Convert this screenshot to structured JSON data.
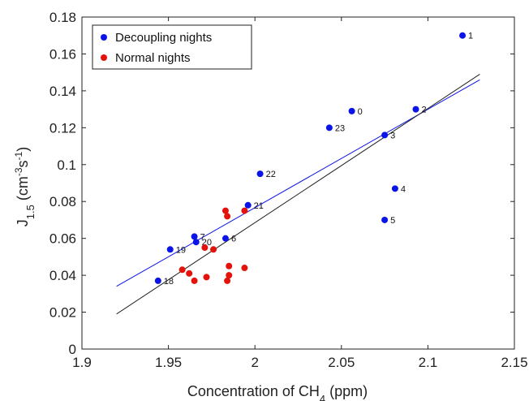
{
  "chart_data": {
    "type": "scatter",
    "xlabel": "Concentration of CH",
    "xlabel_sub": "4",
    "xlabel_suffix": " (ppm)",
    "ylabel": "J",
    "ylabel_sub": "1.5",
    "ylabel_unit_pre": " (cm",
    "ylabel_unit_sup1": "-3",
    "ylabel_unit_mid": "s",
    "ylabel_unit_sup2": "-1",
    "ylabel_unit_post": ")",
    "xlim": [
      1.9,
      2.15
    ],
    "ylim": [
      0,
      0.18
    ],
    "xticks": [
      1.9,
      1.95,
      2.0,
      2.05,
      2.1,
      2.15
    ],
    "xtick_labels": [
      "1.9",
      "1.95",
      "2",
      "2.05",
      "2.1",
      "2.15"
    ],
    "yticks": [
      0,
      0.02,
      0.04,
      0.06,
      0.08,
      0.1,
      0.12,
      0.14,
      0.16,
      0.18
    ],
    "ytick_labels": [
      "0",
      "0.02",
      "0.04",
      "0.06",
      "0.08",
      "0.1",
      "0.12",
      "0.14",
      "0.16",
      "0.18"
    ],
    "legend_position": "top-left",
    "series": [
      {
        "name": "Decoupling nights",
        "color": "#0a14e6",
        "points": [
          {
            "x": 2.12,
            "y": 0.17,
            "label": "1"
          },
          {
            "x": 2.093,
            "y": 0.13,
            "label": "2"
          },
          {
            "x": 2.056,
            "y": 0.129,
            "label": "0"
          },
          {
            "x": 2.043,
            "y": 0.12,
            "label": "23"
          },
          {
            "x": 2.075,
            "y": 0.116,
            "label": "3"
          },
          {
            "x": 2.003,
            "y": 0.095,
            "label": "22"
          },
          {
            "x": 2.081,
            "y": 0.087,
            "label": "4"
          },
          {
            "x": 1.996,
            "y": 0.078,
            "label": "21"
          },
          {
            "x": 2.075,
            "y": 0.07,
            "label": "5"
          },
          {
            "x": 1.965,
            "y": 0.061,
            "label": "7"
          },
          {
            "x": 1.983,
            "y": 0.06,
            "label": "6"
          },
          {
            "x": 1.966,
            "y": 0.058,
            "label": "20"
          },
          {
            "x": 1.951,
            "y": 0.054,
            "label": "19"
          },
          {
            "x": 1.944,
            "y": 0.037,
            "label": "18"
          }
        ]
      },
      {
        "name": "Normal nights",
        "color": "#e3120b",
        "points": [
          {
            "x": 1.983,
            "y": 0.075
          },
          {
            "x": 1.994,
            "y": 0.075
          },
          {
            "x": 1.984,
            "y": 0.072
          },
          {
            "x": 1.971,
            "y": 0.055
          },
          {
            "x": 1.976,
            "y": 0.054
          },
          {
            "x": 1.958,
            "y": 0.043
          },
          {
            "x": 1.962,
            "y": 0.041
          },
          {
            "x": 1.972,
            "y": 0.039
          },
          {
            "x": 1.965,
            "y": 0.037
          },
          {
            "x": 1.985,
            "y": 0.045
          },
          {
            "x": 1.994,
            "y": 0.044
          },
          {
            "x": 1.985,
            "y": 0.04
          },
          {
            "x": 1.984,
            "y": 0.037
          }
        ]
      }
    ],
    "fit_lines": [
      {
        "color": "#0a14e6",
        "x": [
          1.92,
          2.13
        ],
        "y": [
          0.034,
          0.146
        ]
      },
      {
        "color": "#222222",
        "x": [
          1.92,
          2.13
        ],
        "y": [
          0.019,
          0.149
        ]
      }
    ]
  }
}
